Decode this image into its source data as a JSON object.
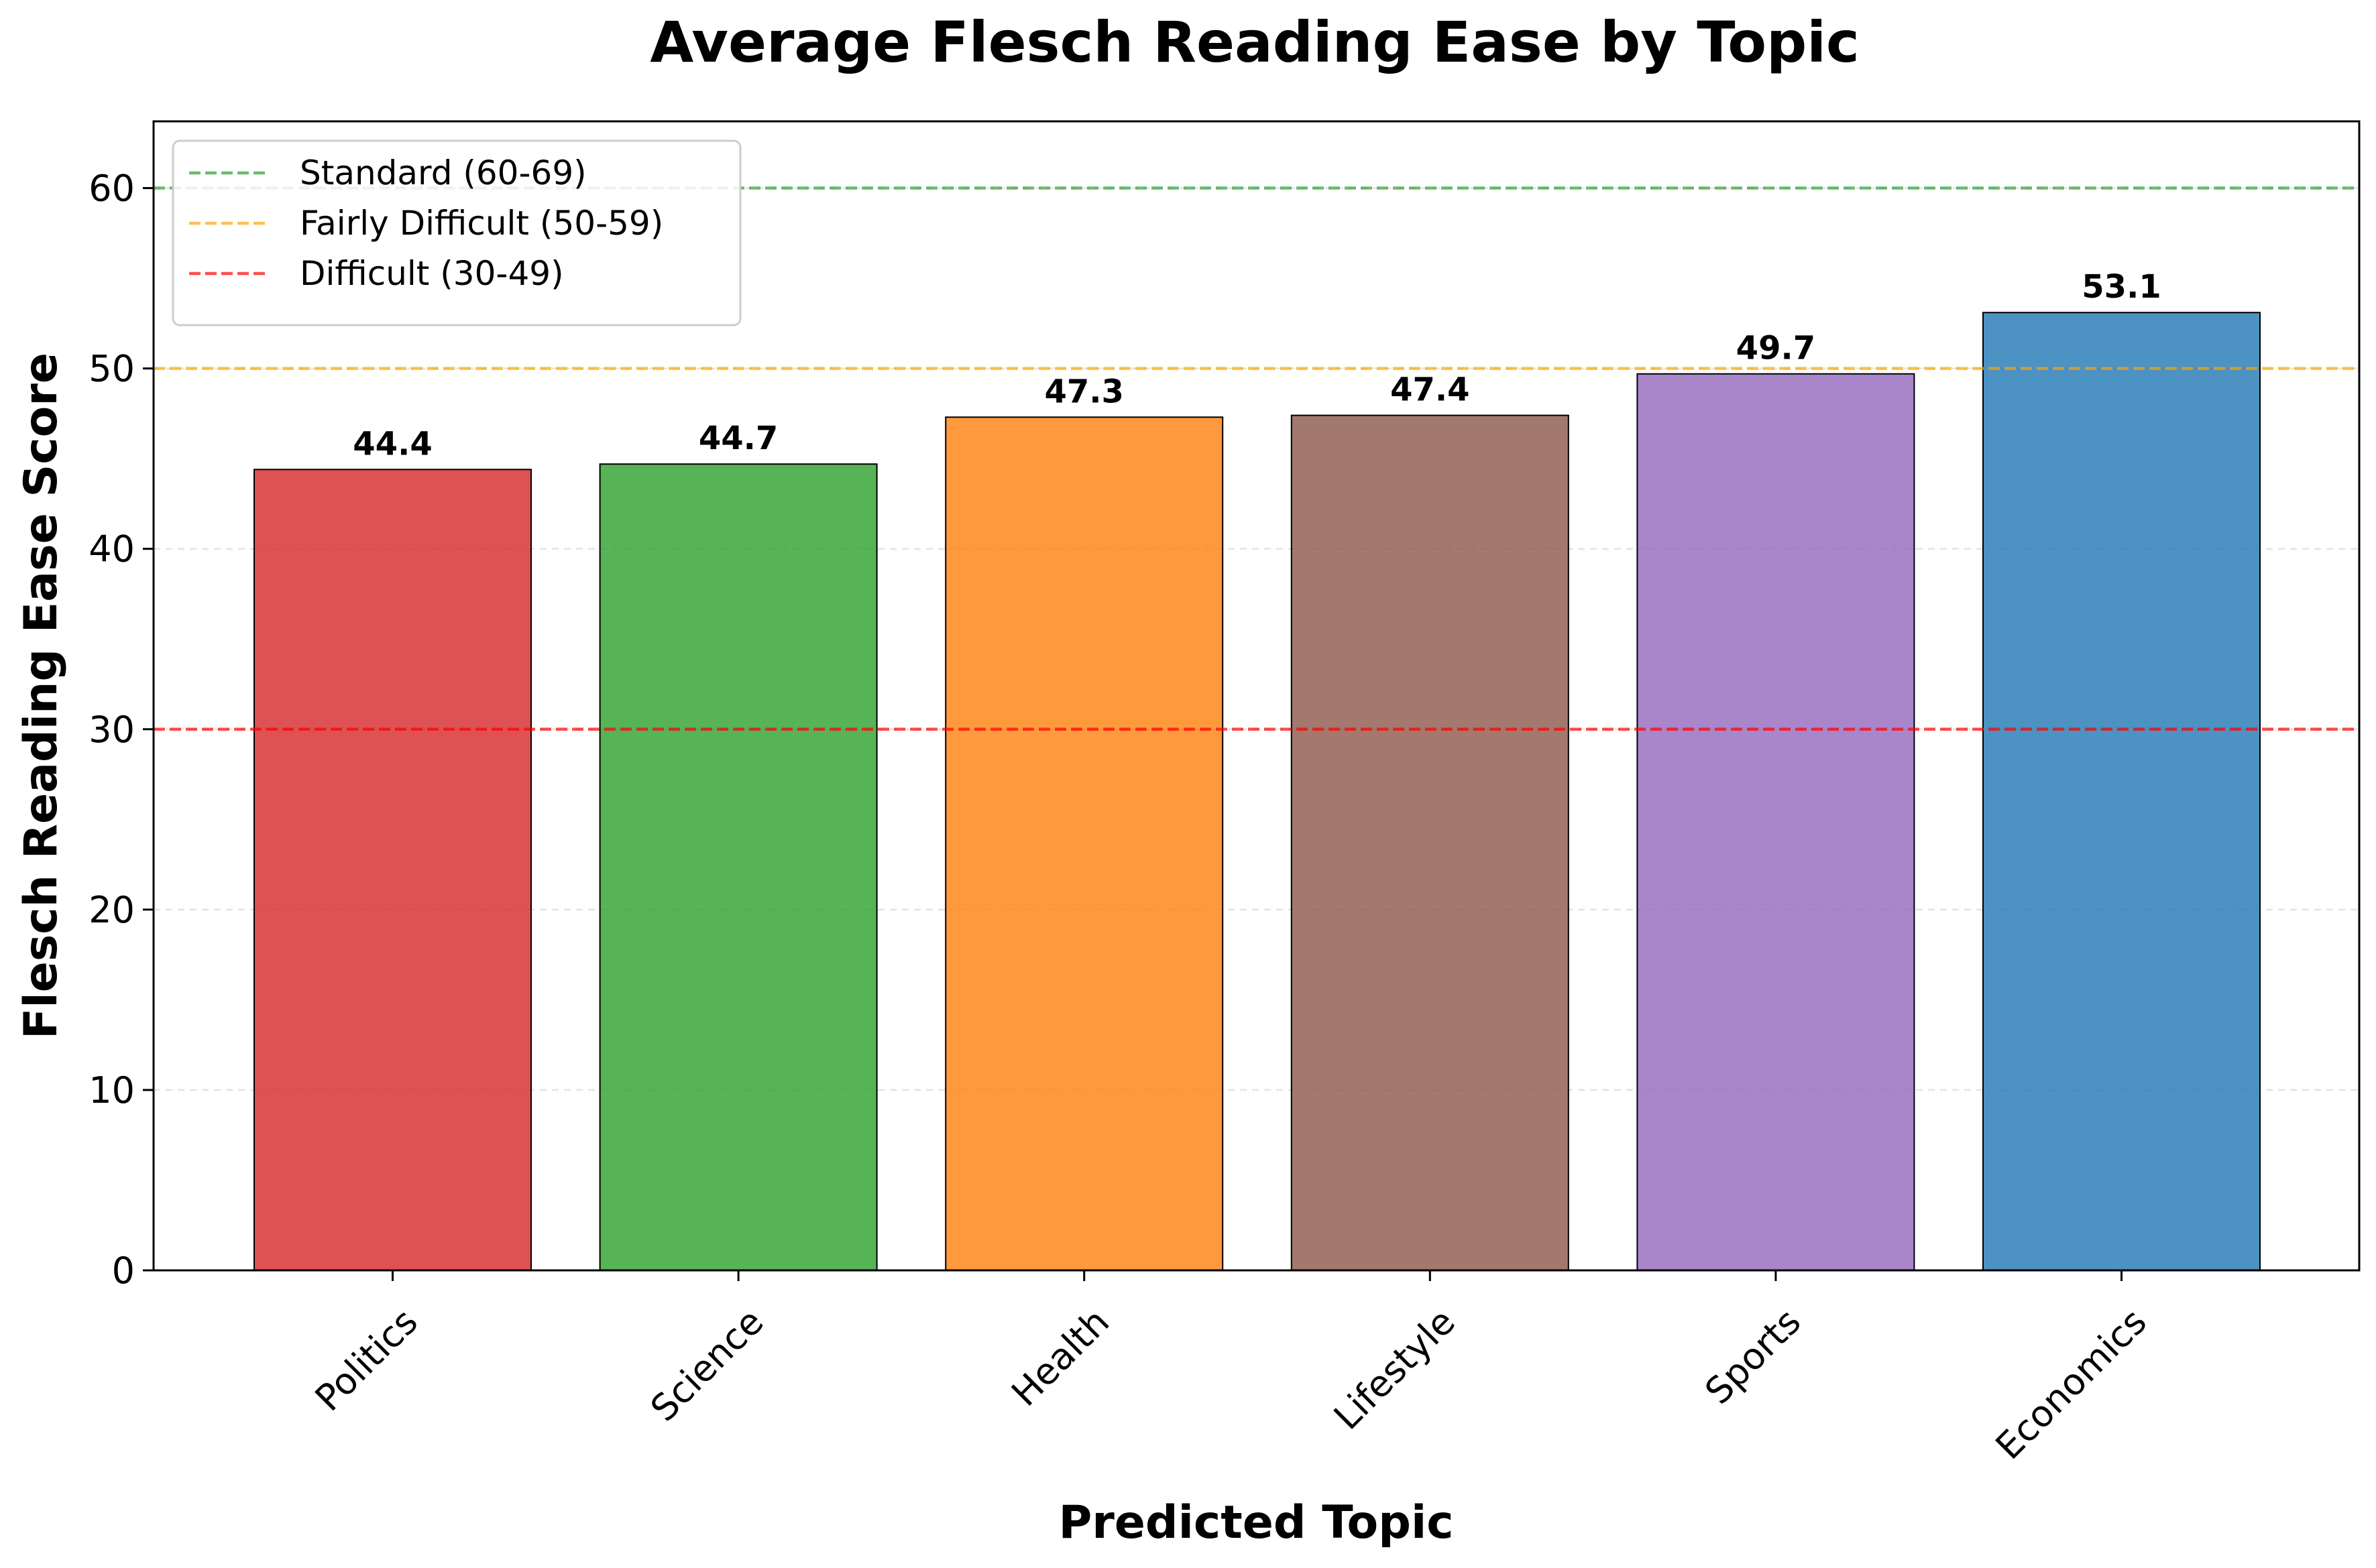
{
  "chart_data": {
    "type": "bar",
    "title": "Average Flesch Reading Ease by Topic",
    "xlabel": "Predicted Topic",
    "ylabel": "Flesch Reading Ease Score",
    "categories": [
      "Politics",
      "Science",
      "Health",
      "Lifestyle",
      "Sports",
      "Economics"
    ],
    "values": [
      44.4,
      44.7,
      47.3,
      47.4,
      49.7,
      53.1
    ],
    "value_labels": [
      "44.4",
      "44.7",
      "47.3",
      "47.4",
      "49.7",
      "53.1"
    ],
    "colors": [
      "#d62728",
      "#2ca02c",
      "#ff7f0e",
      "#8c564b",
      "#9467bd",
      "#1f77b4"
    ],
    "ylim": [
      0,
      63.7
    ],
    "yticks": [
      0,
      10,
      20,
      30,
      40,
      50,
      60
    ],
    "ytick_labels": [
      "0",
      "10",
      "20",
      "30",
      "40",
      "50",
      "60"
    ],
    "grid": "y-axis, dashed, light",
    "reference_lines": [
      {
        "label": "Standard (60-69)",
        "value": 60,
        "color": "#2ca02c"
      },
      {
        "label": "Fairly Difficult (50-59)",
        "value": 50,
        "color": "#ffa500"
      },
      {
        "label": "Difficult (30-49)",
        "value": 30,
        "color": "#ff0000"
      }
    ],
    "legend_position": "upper-left"
  }
}
